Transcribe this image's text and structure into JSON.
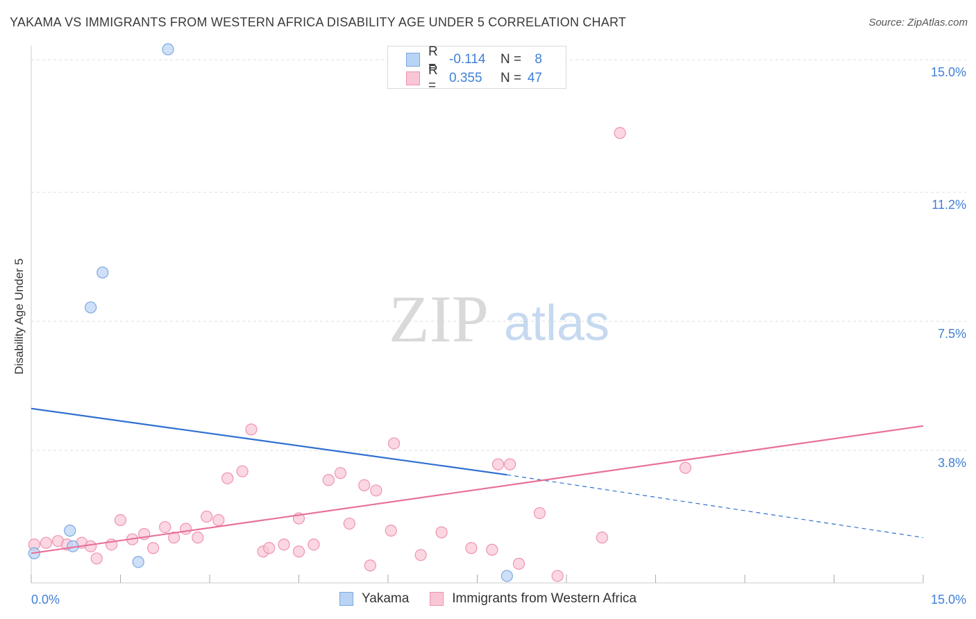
{
  "title": "YAKAMA VS IMMIGRANTS FROM WESTERN AFRICA DISABILITY AGE UNDER 5 CORRELATION CHART",
  "source": "Source: ZipAtlas.com",
  "watermark": {
    "zip": "ZIP",
    "atlas": "atlas"
  },
  "colors": {
    "yakama_fill": "#b9d3f5",
    "yakama_stroke": "#7aa7e0",
    "yakama_line": "#2f6fd0",
    "wa_fill": "#f9c6d5",
    "wa_stroke": "#ee93b0",
    "wa_line": "#e8709a",
    "grid": "#dedede",
    "axis_text": "#3f7fd6"
  },
  "legend": {
    "rows": [
      {
        "r_label": "R =",
        "r_value": "-0.114",
        "n_label": "N =",
        "n_value": "8"
      },
      {
        "r_label": "R =",
        "r_value": "0.355",
        "n_label": "N =",
        "n_value": "47"
      }
    ]
  },
  "bottom_legend": {
    "yakama": "Yakama",
    "wa": "Immigrants from Western Africa"
  },
  "chart_data": {
    "type": "scatter",
    "title": "YAKAMA VS IMMIGRANTS FROM WESTERN AFRICA DISABILITY AGE UNDER 5 CORRELATION CHART",
    "xlabel": "",
    "ylabel": "Disability Age Under 5",
    "xlim": [
      0,
      15
    ],
    "ylim": [
      0,
      15.4
    ],
    "x_tick_labels": [
      "0.0%",
      "15.0%"
    ],
    "y_ticks": [
      3.8,
      7.5,
      11.2,
      15.0
    ],
    "y_tick_labels": [
      "3.8%",
      "7.5%",
      "11.2%",
      "15.0%"
    ],
    "grid": "horizontal dashed",
    "series": [
      {
        "name": "Yakama",
        "points": [
          [
            0.05,
            0.85
          ],
          [
            0.7,
            1.05
          ],
          [
            0.65,
            1.5
          ],
          [
            1.0,
            7.9
          ],
          [
            1.2,
            8.9
          ],
          [
            2.3,
            15.3
          ],
          [
            1.8,
            0.6
          ],
          [
            8.0,
            0.2
          ]
        ],
        "trend": {
          "x": [
            0,
            8.0
          ],
          "y": [
            5.0,
            3.1
          ],
          "dashed_to": [
            15,
            1.3
          ]
        }
      },
      {
        "name": "Immigrants from Western Africa",
        "points": [
          [
            0.05,
            1.1
          ],
          [
            0.25,
            1.15
          ],
          [
            0.45,
            1.2
          ],
          [
            0.6,
            1.1
          ],
          [
            0.85,
            1.15
          ],
          [
            1.0,
            1.05
          ],
          [
            1.1,
            0.7
          ],
          [
            1.35,
            1.1
          ],
          [
            1.5,
            1.8
          ],
          [
            1.7,
            1.25
          ],
          [
            1.9,
            1.4
          ],
          [
            2.05,
            1.0
          ],
          [
            2.25,
            1.6
          ],
          [
            2.4,
            1.3
          ],
          [
            2.6,
            1.55
          ],
          [
            2.8,
            1.3
          ],
          [
            2.95,
            1.9
          ],
          [
            3.15,
            1.8
          ],
          [
            3.3,
            3.0
          ],
          [
            3.55,
            3.2
          ],
          [
            3.7,
            4.4
          ],
          [
            3.9,
            0.9
          ],
          [
            4.0,
            1.0
          ],
          [
            4.25,
            1.1
          ],
          [
            4.5,
            0.9
          ],
          [
            4.5,
            1.85
          ],
          [
            4.75,
            1.1
          ],
          [
            5.0,
            2.95
          ],
          [
            5.2,
            3.15
          ],
          [
            5.35,
            1.7
          ],
          [
            5.6,
            2.8
          ],
          [
            5.8,
            2.65
          ],
          [
            5.7,
            0.5
          ],
          [
            6.05,
            1.5
          ],
          [
            6.1,
            4.0
          ],
          [
            6.55,
            0.8
          ],
          [
            6.9,
            1.45
          ],
          [
            7.4,
            1.0
          ],
          [
            7.75,
            0.95
          ],
          [
            7.85,
            3.4
          ],
          [
            8.05,
            3.4
          ],
          [
            8.2,
            0.55
          ],
          [
            8.55,
            2.0
          ],
          [
            8.85,
            0.2
          ],
          [
            9.6,
            1.3
          ],
          [
            9.9,
            12.9
          ],
          [
            11.0,
            3.3
          ]
        ],
        "trend": {
          "x": [
            0,
            15
          ],
          "y": [
            0.85,
            4.5
          ]
        }
      }
    ]
  }
}
